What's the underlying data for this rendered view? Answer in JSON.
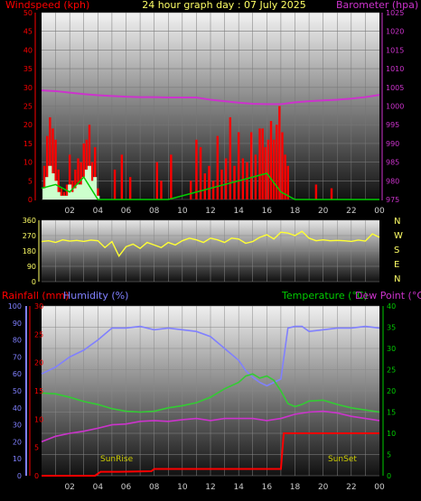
{
  "header": {
    "windspeed_label": "Windspeed (kph)",
    "title": "24 hour graph day : 07 July 2025",
    "barometer_label": "Barometer (hpa)"
  },
  "lower_header": {
    "rainfall_label": "Rainfall (mm)",
    "humidity_label": "Humidity (%)",
    "temperature_label": "Temperature (°C)",
    "dewpoint_label": "Dew Point (°C)"
  },
  "annotations": {
    "sunrise": "SunRise",
    "sunset": "SunSet"
  },
  "colors": {
    "wind": "#ff0000",
    "gust_fill": "#ccffcc",
    "avg_wind": "#00cc00",
    "barometer": "#cc33cc",
    "direction": "#ffff33",
    "humidity": "#8080ff",
    "temperature": "#33cc33",
    "dewpoint": "#cc33cc",
    "rain": "#ff0000",
    "rain_axis": "#ff0000",
    "hum_axis": "#8080ff",
    "temp_axis": "#00cc00",
    "title": "#ffff66"
  },
  "chart_data": [
    {
      "id": "wind",
      "type": "bar",
      "x_ticks": [
        "02",
        "04",
        "06",
        "08",
        "10",
        "12",
        "14",
        "16",
        "18",
        "20",
        "22",
        "00"
      ],
      "y_left": {
        "label": "Windspeed (kph)",
        "range": [
          0,
          50
        ],
        "ticks": [
          0,
          5,
          10,
          15,
          20,
          25,
          30,
          35,
          40,
          45,
          50
        ]
      },
      "y_right": {
        "label": "Barometer (hpa)",
        "range": [
          975,
          1025
        ],
        "ticks": [
          975,
          980,
          985,
          990,
          995,
          1000,
          1005,
          1010,
          1015,
          1020,
          1025
        ]
      },
      "series": [
        {
          "name": "Windspeed (kph)",
          "x": [
            0.2,
            0.4,
            0.6,
            0.8,
            1.0,
            1.2,
            1.4,
            1.6,
            1.8,
            2.0,
            2.2,
            2.4,
            2.6,
            2.8,
            3.0,
            3.2,
            3.4,
            3.6,
            3.8,
            4.0,
            5.2,
            5.7,
            6.3,
            8.2,
            8.5,
            9.2,
            10.6,
            11.0,
            11.3,
            11.6,
            11.9,
            12.2,
            12.5,
            12.8,
            13.1,
            13.4,
            13.7,
            14.0,
            14.3,
            14.6,
            14.9,
            15.2,
            15.5,
            15.7,
            15.9,
            16.1,
            16.3,
            16.5,
            16.7,
            16.9,
            17.1,
            17.3,
            17.5,
            19.5,
            20.6
          ],
          "values": [
            9,
            17,
            22,
            19,
            16,
            8,
            3,
            2,
            4,
            12,
            5,
            8,
            11,
            10,
            15,
            16,
            20,
            10,
            14,
            3,
            8,
            12,
            6,
            10,
            5,
            12,
            5,
            16,
            14,
            7,
            9,
            5,
            17,
            8,
            11,
            22,
            9,
            18,
            11,
            10,
            18,
            12,
            19,
            19,
            14,
            16,
            21,
            16,
            20,
            25,
            18,
            12,
            9,
            4,
            3
          ]
        },
        {
          "name": "Gust",
          "x": [
            0.2,
            0.4,
            0.6,
            0.8,
            1.0,
            1.2,
            1.4,
            1.6,
            1.8,
            2.0,
            2.2,
            2.4,
            2.6,
            2.8,
            3.0,
            3.2,
            3.4,
            3.6,
            3.8,
            4.0
          ],
          "values": [
            3,
            6,
            9,
            7,
            5,
            2,
            1,
            1,
            1,
            4,
            2,
            3,
            4,
            4,
            6,
            8,
            9,
            5,
            6,
            1
          ]
        },
        {
          "name": "Average wind",
          "x": [
            0,
            1,
            2,
            3,
            4,
            5,
            6,
            7,
            8,
            9,
            10,
            11,
            12,
            13,
            14,
            15,
            16,
            17,
            18,
            19,
            20,
            21,
            22,
            23,
            24
          ],
          "values": [
            3,
            4,
            2,
            6,
            0,
            0,
            0,
            0,
            0,
            0,
            1,
            2,
            3,
            4,
            5,
            6,
            7,
            2,
            0,
            0,
            0,
            0,
            0,
            0,
            0
          ]
        },
        {
          "name": "Barometer (hpa)",
          "x": [
            0,
            1,
            2,
            3,
            4,
            5,
            6,
            7,
            8,
            9,
            10,
            11,
            12,
            13,
            14,
            15,
            16,
            17,
            18,
            19,
            20,
            21,
            22,
            23,
            24
          ],
          "values": [
            1004.2,
            1004.0,
            1003.6,
            1003.2,
            1002.9,
            1002.7,
            1002.5,
            1002.4,
            1002.4,
            1002.3,
            1002.3,
            1002.3,
            1001.7,
            1001.3,
            1000.9,
            1000.6,
            1000.5,
            1000.5,
            1001.0,
            1001.3,
            1001.5,
            1001.7,
            1002.0,
            1002.4,
            1003.0
          ]
        }
      ]
    },
    {
      "id": "direction",
      "type": "line",
      "y_ticks": [
        0,
        90,
        180,
        270,
        360
      ],
      "compass_labels": [
        "N",
        "W",
        "S",
        "E",
        "N"
      ],
      "series": [
        {
          "name": "Wind direction",
          "x": [
            0,
            0.5,
            1,
            1.5,
            2,
            2.5,
            3,
            3.5,
            4,
            4.5,
            5,
            5.5,
            6,
            6.5,
            7,
            7.5,
            8,
            8.5,
            9,
            9.5,
            10,
            10.5,
            11,
            11.5,
            12,
            12.5,
            13,
            13.5,
            14,
            14.5,
            15,
            15.5,
            16,
            16.5,
            17,
            17.5,
            18,
            18.5,
            19,
            19.5,
            20,
            20.5,
            21,
            21.5,
            22,
            22.5,
            23,
            23.5,
            24
          ],
          "values": [
            235,
            240,
            230,
            245,
            238,
            242,
            236,
            244,
            240,
            200,
            235,
            150,
            205,
            220,
            195,
            230,
            215,
            200,
            230,
            215,
            240,
            255,
            245,
            230,
            255,
            245,
            230,
            255,
            250,
            225,
            235,
            260,
            275,
            250,
            290,
            285,
            270,
            295,
            255,
            240,
            245,
            240,
            242,
            240,
            236,
            244,
            238,
            280,
            260
          ]
        }
      ]
    },
    {
      "id": "climate",
      "type": "line",
      "x_ticks": [
        "02",
        "04",
        "06",
        "08",
        "10",
        "12",
        "14",
        "16",
        "18",
        "20",
        "22",
        "00"
      ],
      "y_axes": [
        {
          "label": "Humidity (%)",
          "range": [
            0,
            100
          ],
          "ticks": [
            0,
            10,
            20,
            30,
            40,
            50,
            60,
            70,
            80,
            90,
            100
          ]
        },
        {
          "label": "Rainfall (mm)",
          "range": [
            0,
            30
          ],
          "ticks": [
            0,
            5,
            10,
            15,
            20,
            25,
            30
          ]
        },
        {
          "label": "Temperature (°C)",
          "range": [
            0,
            40
          ],
          "ticks": [
            0,
            5,
            10,
            15,
            20,
            25,
            30,
            35,
            40
          ]
        }
      ],
      "series": [
        {
          "name": "Humidity (%)",
          "x": [
            0,
            1,
            2,
            3,
            4,
            5,
            6,
            7,
            8,
            9,
            10,
            11,
            12,
            13,
            14,
            14.5,
            15,
            15.5,
            16,
            16.5,
            17,
            17.5,
            18,
            18.5,
            19,
            20,
            21,
            22,
            23,
            24
          ],
          "values": [
            60,
            64,
            70,
            74,
            80,
            87,
            87,
            88,
            86,
            87,
            86,
            85,
            82,
            75,
            68,
            62,
            58,
            55,
            53,
            55,
            57,
            87,
            88,
            88,
            85,
            86,
            87,
            87,
            88,
            87
          ]
        },
        {
          "name": "Temperature (°C)",
          "x": [
            0,
            1,
            2,
            3,
            4,
            5,
            6,
            7,
            8,
            9,
            10,
            11,
            12,
            13,
            14,
            14.5,
            15,
            15.5,
            16,
            16.5,
            17,
            17.5,
            18,
            18.5,
            19,
            20,
            21,
            22,
            23,
            24
          ],
          "values": [
            19.5,
            19.3,
            18.5,
            17.5,
            16.8,
            15.8,
            15.2,
            15.0,
            15.2,
            16.0,
            16.5,
            17.2,
            18.5,
            20.5,
            22.0,
            23.5,
            24.0,
            23.0,
            23.5,
            22.5,
            20.0,
            17.0,
            16.3,
            16.8,
            17.6,
            17.8,
            16.8,
            16.0,
            15.5,
            15.0
          ]
        },
        {
          "name": "Dew Point (°C)",
          "x": [
            0,
            1,
            2,
            3,
            4,
            5,
            6,
            7,
            8,
            9,
            10,
            11,
            12,
            13,
            14,
            15,
            16,
            17,
            18,
            19,
            20,
            21,
            22,
            23,
            24
          ],
          "values": [
            8.0,
            9.3,
            10.0,
            10.5,
            11.2,
            12.0,
            12.2,
            12.8,
            13.0,
            12.8,
            13.2,
            13.5,
            13.0,
            13.5,
            13.5,
            13.5,
            13.0,
            13.5,
            14.5,
            15.0,
            15.2,
            14.8,
            14.0,
            13.5,
            13.0
          ]
        },
        {
          "name": "Rainfall (mm)",
          "x": [
            0,
            3.8,
            4.2,
            5.5,
            7.8,
            8.0,
            17.0,
            17.2,
            24.0
          ],
          "values": [
            0,
            0,
            0.7,
            0.7,
            0.8,
            1.2,
            1.2,
            7.5,
            7.5
          ]
        }
      ]
    }
  ]
}
